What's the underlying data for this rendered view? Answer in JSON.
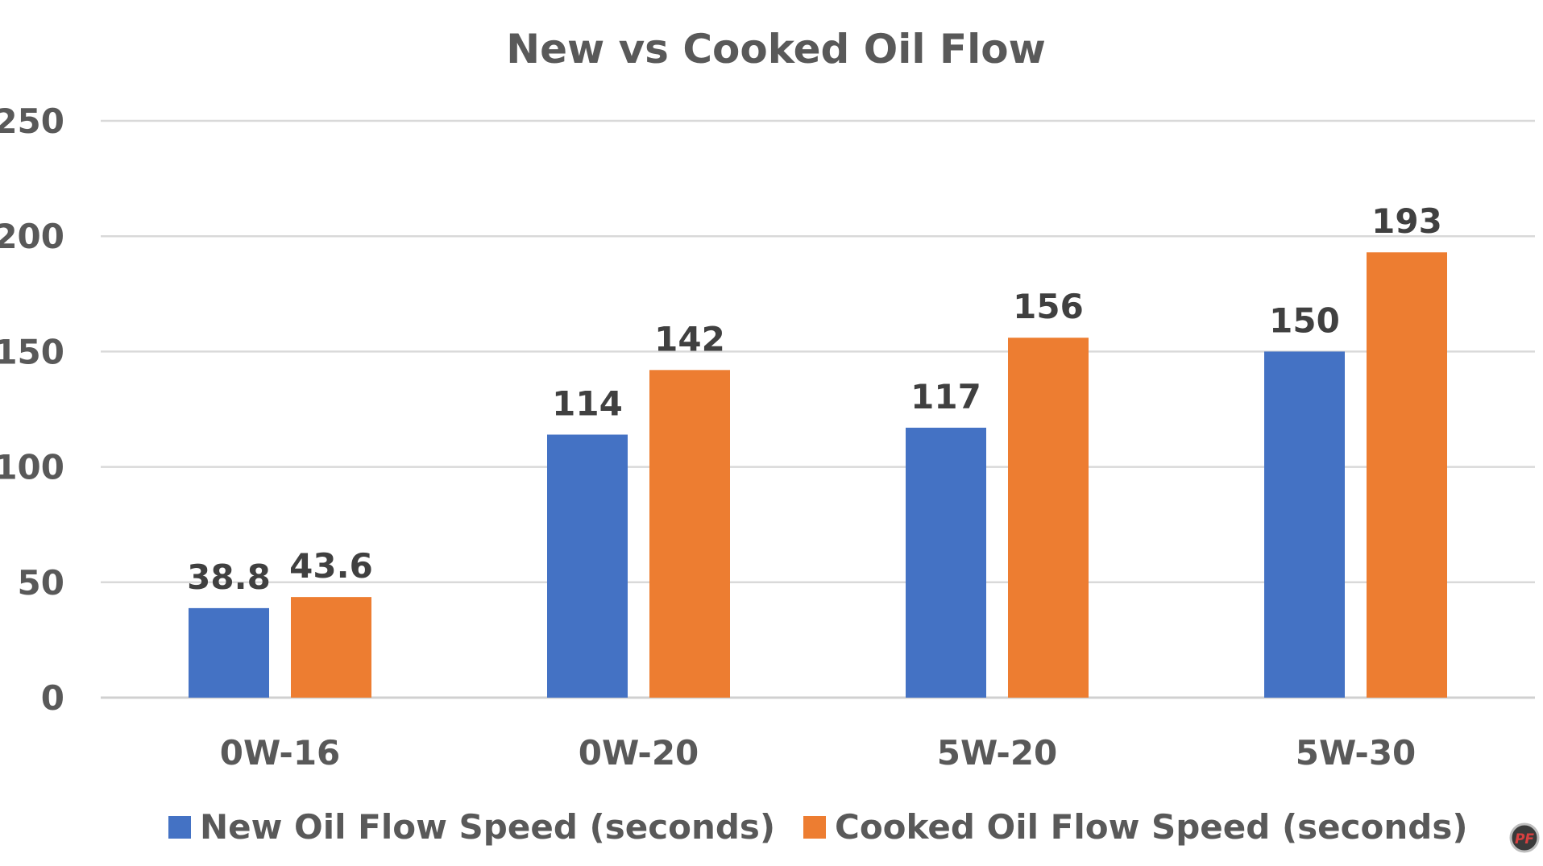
{
  "chart_data": {
    "type": "bar",
    "title": "New vs Cooked Oil Flow",
    "xlabel": "",
    "ylabel": "",
    "categories": [
      "0W-16",
      "0W-20",
      "5W-20",
      "5W-30"
    ],
    "series": [
      {
        "name": "New Oil Flow Speed (seconds)",
        "values": [
          38.8,
          114,
          117,
          150
        ],
        "labels": [
          "38.8",
          "114",
          "117",
          "150"
        ],
        "color": "#4472C4"
      },
      {
        "name": "Cooked Oil Flow Speed (seconds)",
        "values": [
          43.6,
          142,
          156,
          193
        ],
        "labels": [
          "43.6",
          "142",
          "156",
          "193"
        ],
        "color": "#ED7D31"
      }
    ],
    "ylim": [
      0,
      250
    ],
    "yticks": [
      0,
      50,
      100,
      150,
      200,
      250
    ],
    "grid": true,
    "legend_position": "bottom"
  },
  "watermark": {
    "text": "PF"
  }
}
